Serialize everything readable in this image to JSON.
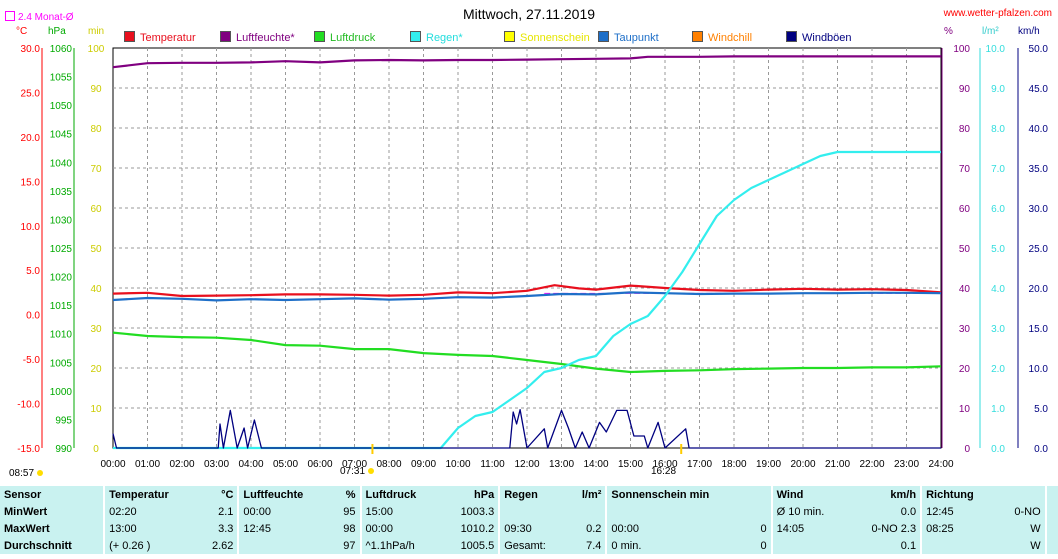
{
  "header": {
    "title": "Mittwoch, 27.11.2019",
    "site": "www.wetter-pfalzen.com",
    "avg_label": "2.4 Monat-Ø"
  },
  "units": {
    "celsius": "°C",
    "hpa": "hPa",
    "min": "min",
    "percent": "%",
    "rain": "l/m²",
    "wind": "km/h"
  },
  "legend": [
    {
      "label": "Temperatur",
      "color": "#e8101e"
    },
    {
      "label": "Luftfeuchte*",
      "color": "#800080"
    },
    {
      "label": "Luftdruck",
      "color": "#22dd22"
    },
    {
      "label": "Regen*",
      "color": "#33eeee"
    },
    {
      "label": "Sonnenschein",
      "color": "#ffff00"
    },
    {
      "label": "Taupunkt",
      "color": "#1e6fc8"
    },
    {
      "label": "Windchill",
      "color": "#ff8000"
    },
    {
      "label": "Windböen",
      "color": "#000080"
    }
  ],
  "time_marks": {
    "sunrise": "07:31",
    "sunset": "16:28",
    "sunshine": "08:57"
  },
  "chart_data": {
    "type": "line",
    "title": "Mittwoch, 27.11.2019",
    "x_ticks": [
      "00:00",
      "01:00",
      "02:00",
      "03:00",
      "04:00",
      "05:00",
      "06:00",
      "07:00",
      "08:00",
      "09:00",
      "10:00",
      "11:00",
      "12:00",
      "13:00",
      "14:00",
      "15:00",
      "16:00",
      "17:00",
      "18:00",
      "19:00",
      "20:00",
      "21:00",
      "22:00",
      "23:00",
      "24:00"
    ],
    "x_range_hours": [
      0,
      24
    ],
    "grid": true,
    "axes": {
      "temperature_c": {
        "range": [
          -15,
          30
        ],
        "ticks": [
          "30.0",
          "25.0",
          "20.0",
          "15.0",
          "10.0",
          "5.0",
          "0.0",
          "-5.0",
          "-10.0",
          "-15.0"
        ],
        "color": "#ff0000"
      },
      "pressure_hpa": {
        "range": [
          990,
          1060
        ],
        "ticks": [
          "1060",
          "1055",
          "1050",
          "1045",
          "1040",
          "1035",
          "1030",
          "1025",
          "1020",
          "1015",
          "1010",
          "1005",
          "1000",
          "995",
          "990"
        ],
        "color": "#00aa00"
      },
      "sunshine_min": {
        "range": [
          0,
          100
        ],
        "ticks": [
          "100",
          "90",
          "80",
          "70",
          "60",
          "50",
          "40",
          "30",
          "20",
          "10",
          "0"
        ],
        "color": "#cccc00"
      },
      "humidity_pct": {
        "range": [
          0,
          100
        ],
        "ticks": [
          "100",
          "90",
          "80",
          "70",
          "60",
          "50",
          "40",
          "30",
          "20",
          "10",
          "0"
        ],
        "color": "#800080"
      },
      "rain_lm2": {
        "range": [
          0,
          10
        ],
        "ticks": [
          "10.0",
          "9.0",
          "8.0",
          "7.0",
          "6.0",
          "5.0",
          "4.0",
          "3.0",
          "2.0",
          "1.0",
          "0.0"
        ],
        "color": "#33dddd"
      },
      "wind_kmh": {
        "range": [
          0,
          50
        ],
        "ticks": [
          "50.0",
          "45.0",
          "40.0",
          "35.0",
          "30.0",
          "25.0",
          "20.0",
          "15.0",
          "10.0",
          "5.0",
          "0.0"
        ],
        "color": "#000080"
      }
    },
    "series": [
      {
        "name": "Temperatur",
        "axis": "humidity_pct",
        "color": "#e8101e",
        "points": [
          [
            0,
            38.6
          ],
          [
            1,
            38.8
          ],
          [
            2,
            38.0
          ],
          [
            3,
            38.1
          ],
          [
            4,
            38.2
          ],
          [
            5,
            38.4
          ],
          [
            6,
            38.4
          ],
          [
            7,
            38.3
          ],
          [
            8,
            38.1
          ],
          [
            9,
            38.3
          ],
          [
            10,
            38.9
          ],
          [
            11,
            38.7
          ],
          [
            12,
            39.3
          ],
          [
            12.8,
            40.7
          ],
          [
            13.5,
            39.9
          ],
          [
            14,
            39.6
          ],
          [
            15,
            40.6
          ],
          [
            16,
            40.0
          ],
          [
            17,
            39.5
          ],
          [
            18,
            39.3
          ],
          [
            19,
            39.6
          ],
          [
            20,
            39.8
          ],
          [
            21,
            39.6
          ],
          [
            22,
            39.7
          ],
          [
            23,
            39.5
          ],
          [
            24,
            38.9
          ]
        ]
      },
      {
        "name": "Taupunkt",
        "axis": "humidity_pct",
        "color": "#1e6fc8",
        "points": [
          [
            0,
            37.0
          ],
          [
            1,
            37.5
          ],
          [
            2,
            37.3
          ],
          [
            3,
            36.9
          ],
          [
            4,
            37.2
          ],
          [
            5,
            37.0
          ],
          [
            6,
            37.2
          ],
          [
            7,
            37.4
          ],
          [
            8,
            37.1
          ],
          [
            9,
            37.3
          ],
          [
            10,
            37.7
          ],
          [
            11,
            37.6
          ],
          [
            12,
            38.0
          ],
          [
            13,
            38.5
          ],
          [
            14,
            38.4
          ],
          [
            15,
            38.9
          ],
          [
            16,
            38.7
          ],
          [
            17,
            38.5
          ],
          [
            18,
            38.6
          ],
          [
            19,
            38.6
          ],
          [
            20,
            38.7
          ],
          [
            21,
            38.7
          ],
          [
            22,
            38.8
          ],
          [
            23,
            38.8
          ],
          [
            24,
            38.7
          ]
        ]
      },
      {
        "name": "Luftfeuchte*",
        "axis": "humidity_pct",
        "color": "#800080",
        "points": [
          [
            0,
            95.2
          ],
          [
            1,
            96.2
          ],
          [
            2,
            96.3
          ],
          [
            3,
            96.3
          ],
          [
            4,
            96.4
          ],
          [
            5,
            96.7
          ],
          [
            6,
            96.4
          ],
          [
            7,
            96.9
          ],
          [
            8,
            97.0
          ],
          [
            9,
            96.9
          ],
          [
            10,
            97.0
          ],
          [
            11,
            97.0
          ],
          [
            12,
            97.1
          ],
          [
            13,
            97.2
          ],
          [
            14,
            97.3
          ],
          [
            15,
            97.4
          ],
          [
            15.5,
            97.8
          ],
          [
            16,
            97.8
          ],
          [
            17,
            97.8
          ],
          [
            18,
            97.9
          ],
          [
            19,
            97.9
          ],
          [
            20,
            97.9
          ],
          [
            21,
            97.9
          ],
          [
            22,
            97.9
          ],
          [
            23,
            97.9
          ],
          [
            24,
            97.9
          ]
        ]
      },
      {
        "name": "Luftdruck",
        "axis": "pressure_hpa",
        "color": "#22dd22",
        "points": [
          [
            0,
            1010.2
          ],
          [
            1,
            1009.6
          ],
          [
            2,
            1009.4
          ],
          [
            3,
            1009.3
          ],
          [
            4,
            1008.9
          ],
          [
            5,
            1008.0
          ],
          [
            6,
            1007.9
          ],
          [
            7,
            1007.3
          ],
          [
            8,
            1007.3
          ],
          [
            9,
            1006.6
          ],
          [
            10,
            1006.3
          ],
          [
            11,
            1006.1
          ],
          [
            12,
            1005.4
          ],
          [
            13,
            1004.7
          ],
          [
            14,
            1003.9
          ],
          [
            15,
            1003.3
          ],
          [
            16,
            1003.5
          ],
          [
            17,
            1003.6
          ],
          [
            18,
            1003.8
          ],
          [
            19,
            1003.9
          ],
          [
            20,
            1004.0
          ],
          [
            21,
            1004.0
          ],
          [
            22,
            1004.1
          ],
          [
            23,
            1004.1
          ],
          [
            24,
            1004.3
          ]
        ]
      },
      {
        "name": "Regen*",
        "axis": "rain_lm2",
        "color": "#33eeee",
        "points": [
          [
            0,
            0
          ],
          [
            9.5,
            0
          ],
          [
            10,
            0.5
          ],
          [
            10.5,
            0.8
          ],
          [
            11,
            0.9
          ],
          [
            11.5,
            1.2
          ],
          [
            12,
            1.5
          ],
          [
            12.5,
            1.9
          ],
          [
            13,
            2.0
          ],
          [
            13.5,
            2.2
          ],
          [
            14,
            2.3
          ],
          [
            14.5,
            2.8
          ],
          [
            15,
            3.1
          ],
          [
            15.5,
            3.3
          ],
          [
            16,
            3.8
          ],
          [
            16.5,
            4.4
          ],
          [
            17,
            5.1
          ],
          [
            17.5,
            5.8
          ],
          [
            18,
            6.2
          ],
          [
            18.5,
            6.5
          ],
          [
            19,
            6.7
          ],
          [
            19.5,
            6.9
          ],
          [
            20,
            7.1
          ],
          [
            20.5,
            7.3
          ],
          [
            21,
            7.4
          ],
          [
            22,
            7.4
          ],
          [
            23,
            7.4
          ],
          [
            24,
            7.4
          ]
        ]
      },
      {
        "name": "Windböen",
        "axis": "wind_kmh",
        "color": "#000080",
        "points": [
          [
            0,
            1.8
          ],
          [
            0.1,
            0
          ],
          [
            3.05,
            0
          ],
          [
            3.1,
            3
          ],
          [
            3.2,
            0
          ],
          [
            3.4,
            4.7
          ],
          [
            3.6,
            0
          ],
          [
            3.8,
            2.5
          ],
          [
            3.9,
            0
          ],
          [
            4.1,
            3.5
          ],
          [
            4.3,
            0
          ],
          [
            11.5,
            0
          ],
          [
            11.6,
            4.5
          ],
          [
            11.7,
            3
          ],
          [
            11.8,
            4.8
          ],
          [
            12.0,
            0
          ],
          [
            12.5,
            2.4
          ],
          [
            12.6,
            0
          ],
          [
            13.0,
            4.7
          ],
          [
            13.2,
            2.5
          ],
          [
            13.4,
            0
          ],
          [
            13.6,
            2
          ],
          [
            13.8,
            0
          ],
          [
            14.1,
            3.2
          ],
          [
            14.3,
            2
          ],
          [
            14.6,
            4.7
          ],
          [
            14.9,
            4.7
          ],
          [
            15.1,
            1.5
          ],
          [
            15.4,
            1.5
          ],
          [
            15.5,
            0
          ],
          [
            15.8,
            3.2
          ],
          [
            16.0,
            0
          ],
          [
            16.6,
            2.4
          ],
          [
            16.7,
            0
          ],
          [
            24,
            0
          ]
        ]
      }
    ],
    "average_line": {
      "label": "2.4 Monat-Ø",
      "axis": "temperature_c",
      "value": 2.4,
      "color": "#ff00ff",
      "range_hours": [
        12.5,
        24
      ]
    }
  },
  "stats": {
    "header": [
      "Sensor",
      "Temperatur",
      "°C",
      "Luftfeuchte",
      "%",
      "Luftdruck",
      "hPa",
      "Regen",
      "l/m²",
      "Sonnenschein min",
      "",
      "Wind",
      "km/h",
      "Richtung",
      ""
    ],
    "rows": [
      [
        "MinWert",
        "02:20",
        "2.1",
        "00:00",
        "95",
        "15:00",
        "1003.3",
        "",
        "",
        "",
        "",
        "Ø 10 min.",
        "0.0",
        "12:45",
        "0-NO"
      ],
      [
        "MaxWert",
        "13:00",
        "3.3",
        "12:45",
        "98",
        "00:00",
        "1010.2",
        "09:30",
        "0.2",
        "00:00",
        "0",
        "14:05",
        "0-NO 2.3",
        "08:25",
        "W"
      ],
      [
        "Durchschnitt",
        "(+ 0.26 )",
        "2.62",
        "",
        "97",
        "^1.1hPa/h",
        "1005.5",
        "Gesamt:",
        "7.4",
        "0 min.",
        "0",
        "",
        "0.1",
        "",
        "W"
      ]
    ]
  }
}
